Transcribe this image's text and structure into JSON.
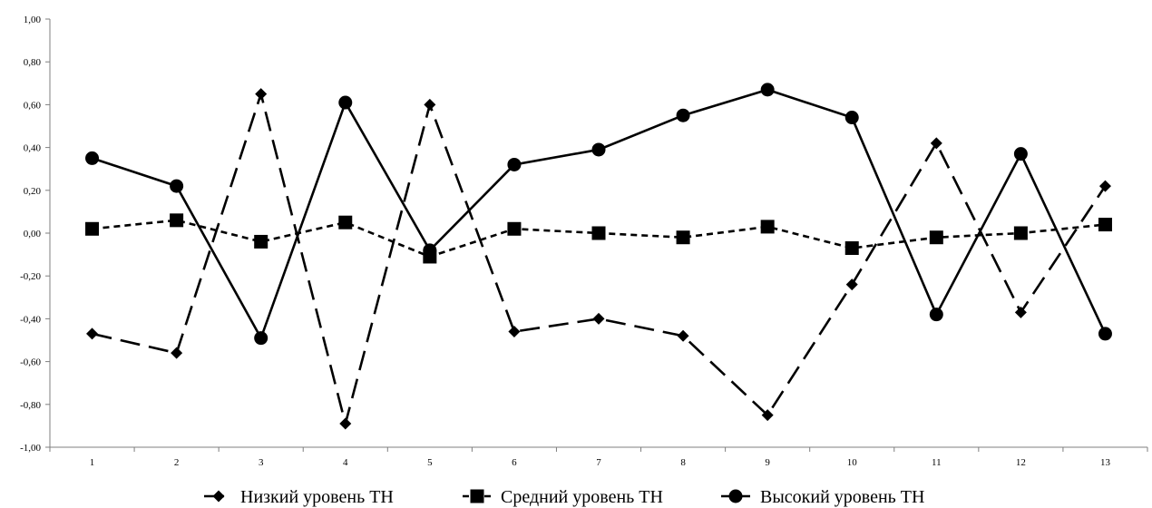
{
  "chart_data": {
    "type": "line",
    "categories": [
      "1",
      "2",
      "3",
      "4",
      "5",
      "6",
      "7",
      "8",
      "9",
      "10",
      "11",
      "12",
      "13"
    ],
    "y_ticks": [
      "1,00",
      "0,80",
      "0,60",
      "0,40",
      "0,20",
      "0,00",
      "-0,20",
      "-0,40",
      "-0,60",
      "-0,80",
      "-1,00"
    ],
    "ylim": [
      -1.0,
      1.0
    ],
    "grid": false,
    "legend_position": "bottom",
    "series": [
      {
        "name": "Низкий уровень ТН",
        "marker": "diamond",
        "line_style": "long-dash",
        "values": [
          -0.47,
          -0.56,
          0.65,
          -0.89,
          0.6,
          -0.46,
          -0.4,
          -0.48,
          -0.85,
          -0.24,
          0.42,
          -0.37,
          0.22
        ]
      },
      {
        "name": "Средний уровень ТН",
        "marker": "square",
        "line_style": "short-dash",
        "values": [
          0.02,
          0.06,
          -0.04,
          0.05,
          -0.11,
          0.02,
          0.0,
          -0.02,
          0.03,
          -0.07,
          -0.02,
          0.0,
          0.04
        ]
      },
      {
        "name": "Высокий уровень ТН",
        "marker": "circle",
        "line_style": "solid",
        "values": [
          0.35,
          0.22,
          -0.49,
          0.61,
          -0.08,
          0.32,
          0.39,
          0.55,
          0.67,
          0.54,
          -0.38,
          0.37,
          -0.47
        ]
      }
    ],
    "colors": {
      "line": "#000000",
      "axis": "#7f7f7f"
    }
  }
}
